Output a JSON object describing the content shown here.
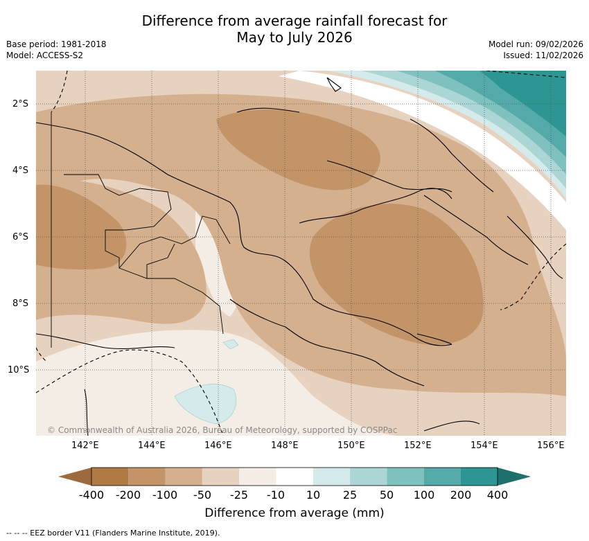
{
  "title": {
    "line1": "Difference from average rainfall forecast for",
    "line2": "May to July 2026"
  },
  "meta_left": {
    "base_period": "Base period: 1981-2018",
    "model": "Model: ACCESS-S2"
  },
  "meta_right": {
    "model_run": "Model run: 09/02/2026",
    "issued": "Issued: 11/02/2026"
  },
  "map": {
    "latitude_labels": [
      "2°S",
      "4°S",
      "6°S",
      "8°S",
      "10°S"
    ],
    "longitude_labels": [
      "142°E",
      "144°E",
      "146°E",
      "148°E",
      "150°E",
      "152°E",
      "154°E",
      "156°E"
    ],
    "copyright": "© Commonwealth of Australia 2026, Bureau of Meteorology, supported by COSPPac"
  },
  "legend": {
    "title": "Difference from average (mm)",
    "tick_labels": [
      "-400",
      "-200",
      "-100",
      "-50",
      "-25",
      "-10",
      "10",
      "25",
      "50",
      "100",
      "200",
      "400"
    ],
    "colors": [
      "#9c6a3c",
      "#b07a45",
      "#c29468",
      "#d4b08e",
      "#e7d1bf",
      "#f3ede6",
      "#ffffff",
      "#d5eaea",
      "#abd6d5",
      "#7fc1bf",
      "#54aaa8",
      "#2e9692",
      "#1f6f6c"
    ]
  },
  "footnote": "--  --  -- EEZ border V11 (Flanders Marine Institute, 2019)."
}
